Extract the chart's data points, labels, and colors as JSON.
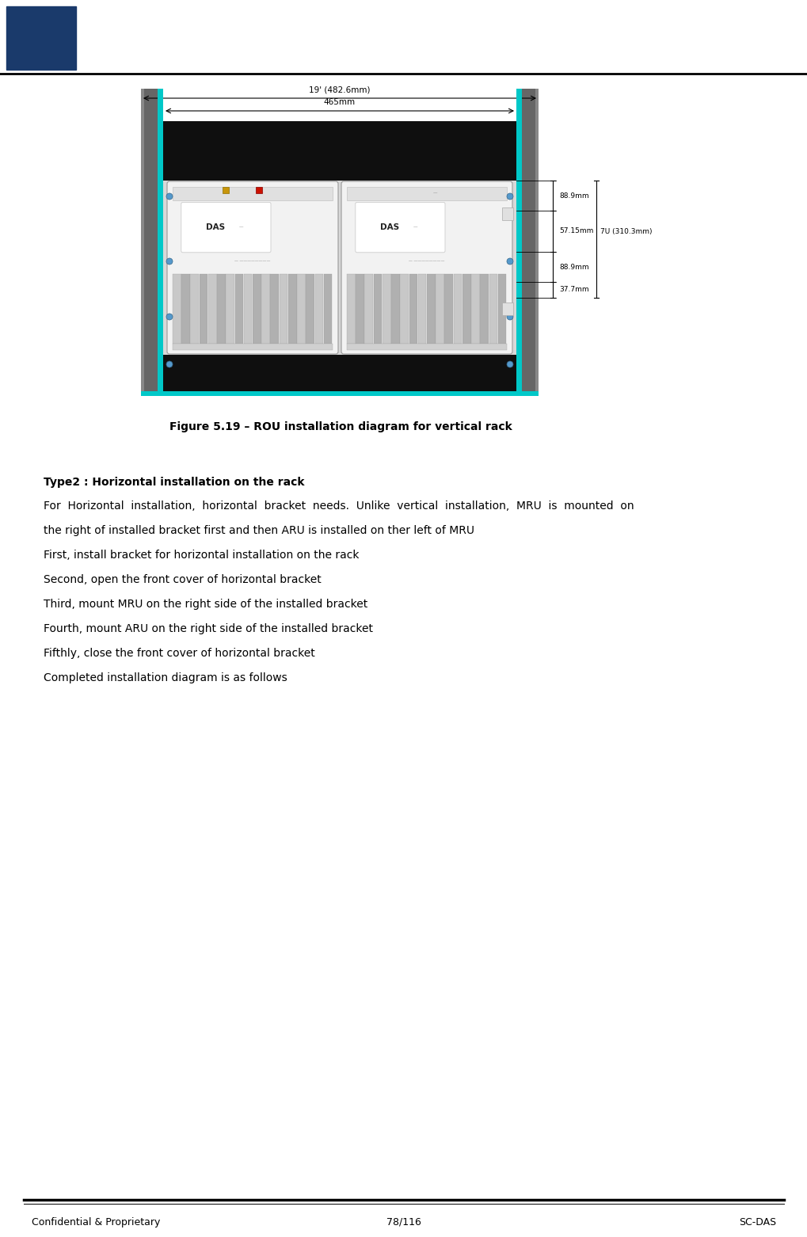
{
  "page_width": 10.2,
  "page_height": 15.62,
  "bg_color": "#ffffff",
  "header_logo_color": "#1a3a6b",
  "footer_text_left": "Confidential & Proprietary",
  "footer_text_center": "78/116",
  "footer_text_right": "SC-DAS",
  "footer_fontsize": 9,
  "figure_caption": "Figure 5.19 – ROU installation diagram for vertical rack",
  "figure_caption_fontsize": 10,
  "section_title": "Type2 : Horizontal installation on the rack",
  "section_title_fontsize": 10,
  "body_lines": [
    "For  Horizontal  installation,  horizontal  bracket  needs.  Unlike  vertical  installation,  MRU  is  mounted  on",
    "the right of installed bracket first and then ARU is installed on ther left of MRU",
    "First, install bracket for horizontal installation on the rack",
    "Second, open the front cover of horizontal bracket",
    "Third, mount MRU on the right side of the installed bracket",
    "Fourth, mount ARU on the right side of the installed bracket",
    "Fifthly, close the front cover of horizontal bracket",
    "Completed installation diagram is as follows"
  ],
  "body_fontsize": 10,
  "dim_text_19": "19' (482.6mm)",
  "dim_text_465": "465mm",
  "teal_color": "#00c8c8",
  "rack_gray": "#8a8a8a",
  "rack_dark_gray": "#606060",
  "black_bracket": "#111111",
  "unit_bg": "#e8e8e8",
  "unit_border": "#aaaaaa",
  "fin_color": "#c0c0c0",
  "fin_dark": "#a0a0a0"
}
